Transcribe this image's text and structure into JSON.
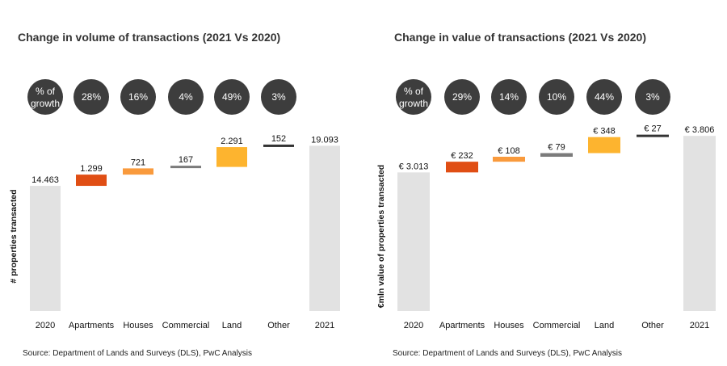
{
  "chart_data": [
    {
      "id": "volume",
      "type": "waterfall",
      "title": "Change in volume of transactions (2021 Vs 2020)",
      "ylabel": "# properties transacted",
      "source": "Source: Department of Lands and Surveys (DLS), PwC Analysis",
      "categories": [
        "2020",
        "Apartments",
        "Houses",
        "Commercial",
        "Land",
        "Other",
        "2021"
      ],
      "values": [
        14463,
        1299,
        721,
        167,
        2291,
        152,
        19093
      ],
      "labels": [
        "14.463",
        "1.299",
        "721",
        "167",
        "2.291",
        "152",
        "19.093"
      ],
      "growth_header": [
        "% of",
        "growth"
      ],
      "growth": [
        "28%",
        "16%",
        "4%",
        "49%",
        "3%"
      ],
      "colors": [
        "#e2e2e2",
        "#e04e14",
        "#f99a3c",
        "#7b7b7b",
        "#fdb42f",
        "#333333",
        "#e2e2e2"
      ],
      "ylim": [
        0,
        21000
      ]
    },
    {
      "id": "value",
      "type": "waterfall",
      "title": "Change in value of transactions (2021 Vs 2020)",
      "ylabel": "€mln value of properties transacted",
      "source": "Source: Department of Lands and Surveys (DLS), PwC Analysis",
      "categories": [
        "2020",
        "Apartments",
        "Houses",
        "Commercial",
        "Land",
        "Other",
        "2021"
      ],
      "values": [
        3013,
        232,
        108,
        79,
        348,
        27,
        3806
      ],
      "labels": [
        "€ 3.013",
        "€ 232",
        "€ 108",
        "€ 79",
        "€ 348",
        "€ 27",
        "€ 3.806"
      ],
      "growth_header": [
        "% of",
        "growth"
      ],
      "growth": [
        "29%",
        "14%",
        "10%",
        "44%",
        "3%"
      ],
      "colors": [
        "#e2e2e2",
        "#e04e14",
        "#f99a3c",
        "#7b7b7b",
        "#fdb42f",
        "#333333",
        "#e2e2e2"
      ],
      "ylim": [
        0,
        3950
      ]
    }
  ]
}
